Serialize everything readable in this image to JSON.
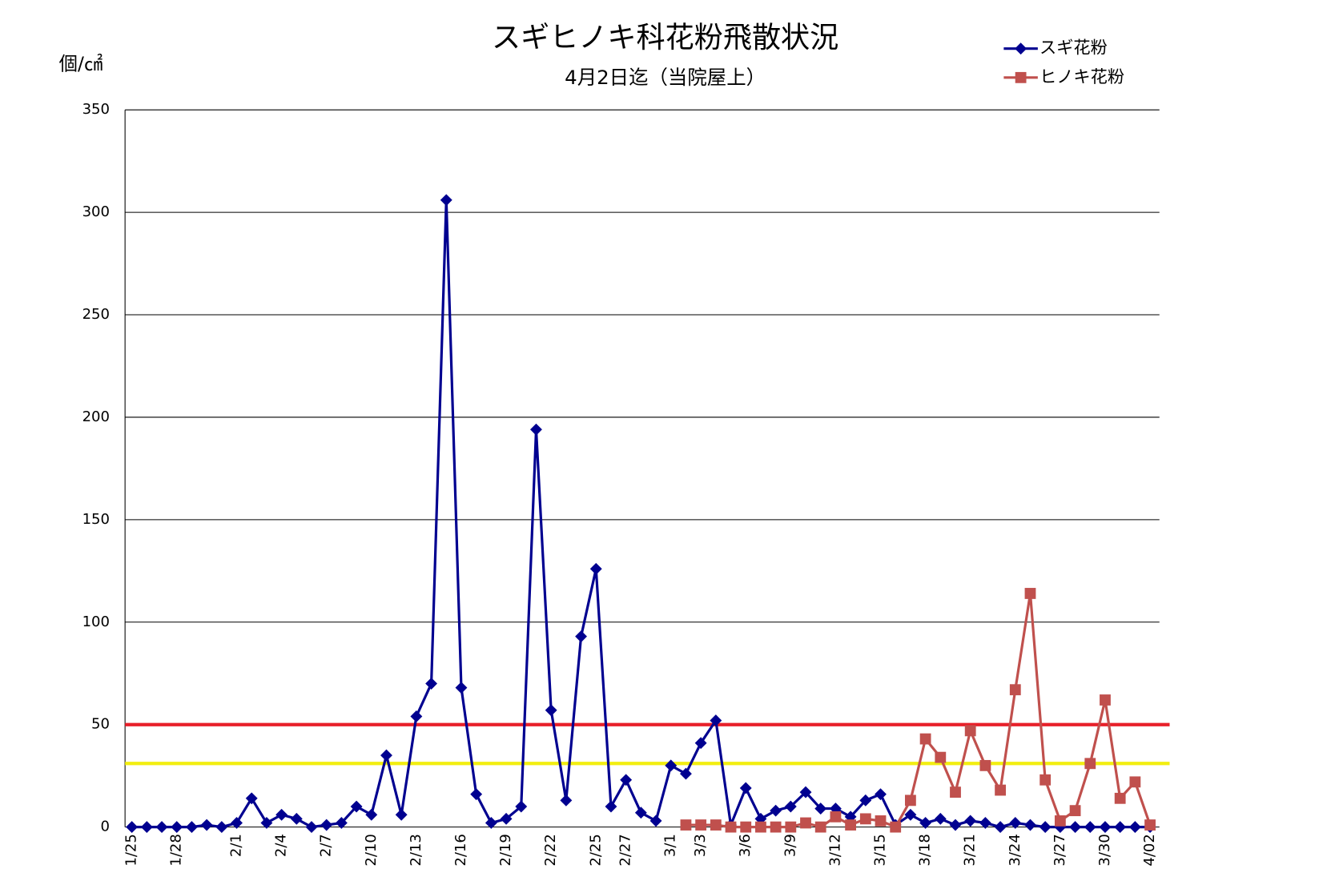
{
  "chart_data": {
    "type": "line",
    "title": "スギヒノキ科花粉飛散状況",
    "subtitle": "4月2日迄（当院屋上）",
    "y_axis_label": "個/㎠",
    "categories": [
      "1/25",
      null,
      null,
      "1/28",
      null,
      null,
      null,
      "2/1",
      null,
      null,
      "2/4",
      null,
      null,
      "2/7",
      null,
      null,
      "2/10",
      null,
      null,
      "2/13",
      null,
      null,
      "2/16",
      null,
      null,
      "2/19",
      null,
      null,
      "2/22",
      null,
      null,
      "2/25",
      null,
      "2/27",
      null,
      null,
      "3/1",
      null,
      "3/3",
      null,
      null,
      "3/6",
      null,
      null,
      "3/9",
      null,
      null,
      "3/12",
      null,
      null,
      "3/15",
      null,
      null,
      "3/18",
      null,
      null,
      "3/21",
      null,
      null,
      "3/24",
      null,
      null,
      "3/27",
      null,
      null,
      "3/30",
      null,
      null,
      "4/02"
    ],
    "series": [
      {
        "name": "スギ花粉",
        "color": "#000090",
        "marker": "diamond",
        "values": [
          0,
          0,
          0,
          0,
          0,
          1,
          0,
          2,
          14,
          2,
          6,
          4,
          0,
          1,
          2,
          10,
          6,
          35,
          6,
          54,
          70,
          306,
          68,
          16,
          2,
          4,
          10,
          194,
          57,
          13,
          93,
          126,
          10,
          23,
          7,
          3,
          30,
          26,
          41,
          52,
          1,
          19,
          4,
          8,
          10,
          17,
          9,
          9,
          5,
          13,
          16,
          1,
          6,
          2,
          4,
          1,
          3,
          2,
          0,
          2,
          1,
          0,
          0,
          0,
          0,
          0,
          0,
          0,
          0
        ]
      },
      {
        "name": "ヒノキ花粉",
        "color": "#c0504d",
        "marker": "square",
        "values": [
          null,
          null,
          null,
          null,
          null,
          null,
          null,
          null,
          null,
          null,
          null,
          null,
          null,
          null,
          null,
          null,
          null,
          null,
          null,
          null,
          null,
          null,
          null,
          null,
          null,
          null,
          null,
          null,
          null,
          null,
          null,
          null,
          null,
          null,
          null,
          null,
          null,
          1,
          1,
          1,
          0,
          0,
          0,
          0,
          0,
          2,
          0,
          5,
          1,
          4,
          3,
          0,
          13,
          43,
          34,
          17,
          47,
          30,
          18,
          67,
          114,
          23,
          3,
          8,
          31,
          62,
          14,
          22,
          1
        ]
      }
    ],
    "reference_lines": [
      {
        "value": 50,
        "color": "#e8202a"
      },
      {
        "value": 31,
        "color": "#f2ee10"
      }
    ],
    "ylim": [
      0,
      350
    ],
    "yticks": [
      0,
      50,
      100,
      150,
      200,
      250,
      300,
      350
    ],
    "grid": true,
    "legend": "top-right"
  }
}
